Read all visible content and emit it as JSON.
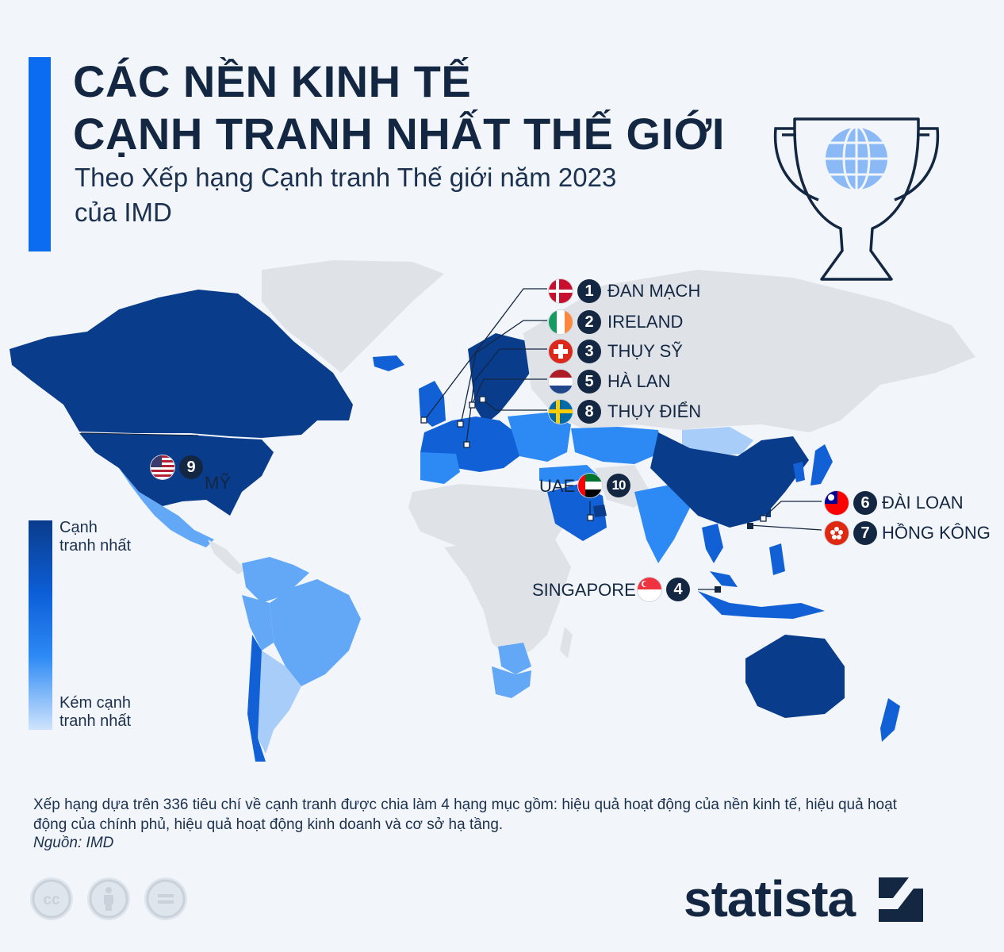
{
  "header": {
    "title_line1": "CÁC NỀN KINH TẾ",
    "title_line2": "CẠNH TRANH NHẤT THẾ GIỚI",
    "subtitle_line1": "Theo Xếp hạng Cạnh tranh Thế giới năm 2023",
    "subtitle_line2": "của IMD"
  },
  "colors": {
    "accent": "#0c6cf0",
    "most_competitive": "#0a3c8c",
    "very_high": "#1160d6",
    "high": "#2d8af5",
    "medium": "#62a8f7",
    "least_competitive": "#a9cdf9",
    "no_data": "#dfe3e8",
    "badge": "#142742"
  },
  "rankings": [
    {
      "rank": "1",
      "name": "ĐAN MẠCH",
      "flag": "denmark-flag"
    },
    {
      "rank": "2",
      "name": "IRELAND",
      "flag": "ireland-flag"
    },
    {
      "rank": "3",
      "name": "THỤY SỸ",
      "flag": "switzerland-flag"
    },
    {
      "rank": "4",
      "name": "SINGAPORE",
      "flag": "singapore-flag"
    },
    {
      "rank": "5",
      "name": "HÀ LAN",
      "flag": "netherlands-flag"
    },
    {
      "rank": "6",
      "name": "ĐÀI LOAN",
      "flag": "taiwan-flag"
    },
    {
      "rank": "7",
      "name": "HỒNG KÔNG",
      "flag": "hong-kong-flag"
    },
    {
      "rank": "8",
      "name": "THỤY ĐIỂN",
      "flag": "sweden-flag"
    },
    {
      "rank": "9",
      "name": "MỸ",
      "flag": "usa-flag"
    },
    {
      "rank": "10",
      "name": "UAE",
      "flag": "uae-flag"
    }
  ],
  "legend": {
    "top_line1": "Cạnh",
    "top_line2": "tranh nhất",
    "bottom_line1": "Kém cạnh",
    "bottom_line2": "tranh nhất"
  },
  "footer": {
    "note": "Xếp hạng dựa trên 336 tiêu chí về cạnh tranh được chia làm 4 hạng mục gồm: hiệu quả hoạt động của nền kinh tế, hiệu quả hoạt động của chính phủ, hiệu quả hoạt động kinh doanh và cơ sở hạ tầng.",
    "source": "Nguồn: IMD",
    "brand": "statista",
    "license_icons": [
      "cc-icon",
      "attribution-icon",
      "no-derivatives-icon"
    ]
  }
}
